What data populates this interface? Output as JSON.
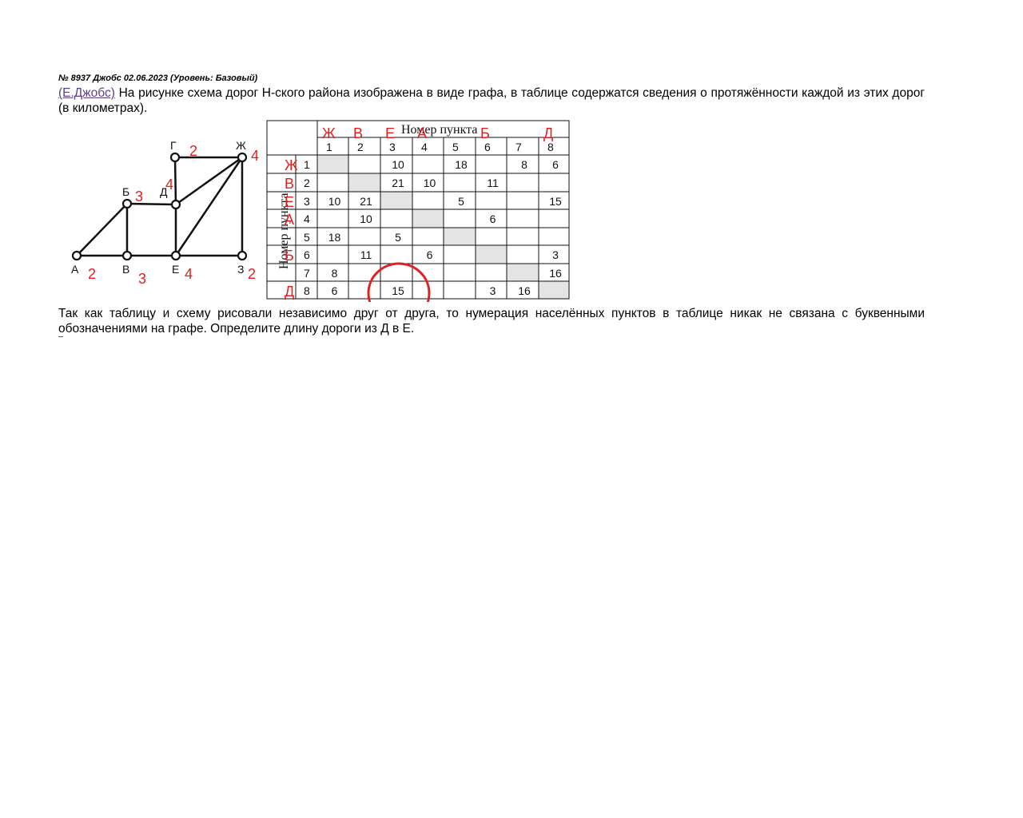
{
  "problem": {
    "header": "№ 8937 Джобс 02.06.2023 (Уровень: Базовый)",
    "author_link": "(Е.Джобс)",
    "text1": " На рисунке схема дорог Н-ского района изображена в виде графа, в таблице содержатся сведения о протяжённости каждой из этих дорог (в километрах).",
    "text2": "Так как таблицу и схему рисовали независимо друг от друга, то нумерация населённых пунктов в таблице никак не связана с буквенными обозначениями на графе. Определите длину дороги из Д в Е."
  },
  "graph": {
    "nodes": [
      {
        "label": "А",
        "degree": "2"
      },
      {
        "label": "Б",
        "degree": "3"
      },
      {
        "label": "В",
        "degree": "3"
      },
      {
        "label": "Г",
        "degree": "2"
      },
      {
        "label": "Д",
        "degree": "4"
      },
      {
        "label": "Е",
        "degree": "4"
      },
      {
        "label": "Ж",
        "degree": "4"
      },
      {
        "label": "З",
        "degree": "2"
      }
    ]
  },
  "table": {
    "caption": "Номер пункта",
    "row_caption": "Номер пункта",
    "col_headers": [
      "1",
      "2",
      "3",
      "4",
      "5",
      "6",
      "7",
      "8"
    ],
    "col_annotations": [
      "Ж",
      "В",
      "Е",
      "А",
      "",
      "Б",
      "",
      "Д"
    ],
    "row_headers": [
      "1",
      "2",
      "3",
      "4",
      "5",
      "6",
      "7",
      "8"
    ],
    "row_annotations": [
      "Ж",
      "В",
      "Е",
      "А",
      "",
      "Б",
      "",
      "Д"
    ],
    "cells": [
      [
        "",
        "",
        "10",
        "",
        "18",
        "",
        "8",
        "6"
      ],
      [
        "",
        "",
        "21",
        "10",
        "",
        "11",
        "",
        ""
      ],
      [
        "10",
        "21",
        "",
        "",
        "5",
        "",
        "",
        "15"
      ],
      [
        "",
        "10",
        "",
        "",
        "",
        "6",
        "",
        ""
      ],
      [
        "18",
        "",
        "5",
        "",
        "",
        "",
        "",
        ""
      ],
      [
        "",
        "11",
        "",
        "6",
        "",
        "",
        "",
        "3"
      ],
      [
        "8",
        "",
        "",
        "",
        "",
        "",
        "",
        "16"
      ],
      [
        "6",
        "",
        "15",
        "",
        "",
        "3",
        "16",
        ""
      ]
    ]
  },
  "colors": {
    "annotation": "#e02020",
    "link": "#5b3d8a",
    "diagonal": "#e4e4e4"
  }
}
